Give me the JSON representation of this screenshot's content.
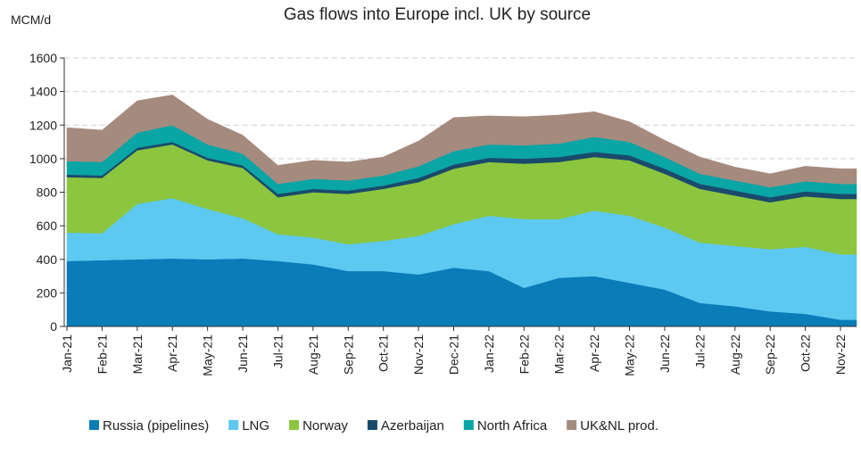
{
  "chart_data": {
    "type": "stacked_area",
    "title": "Gas flows into Europe incl. UK by source",
    "y_label": "MCM/d",
    "categories": [
      "Jan-21",
      "Feb-21",
      "Mar-21",
      "Apr-21",
      "May-21",
      "Jun-21",
      "Jul-21",
      "Aug-21",
      "Sep-21",
      "Oct-21",
      "Nov-21",
      "Dec-21",
      "Jan-22",
      "Feb-22",
      "Mar-22",
      "Apr-22",
      "May-22",
      "Jun-22",
      "Jul-22",
      "Aug-22",
      "Sep-22",
      "Oct-22",
      "Nov-22"
    ],
    "series": [
      {
        "name": "Russia (pipelines)",
        "color": "#0a7cb8",
        "values": [
          390,
          395,
          400,
          405,
          400,
          405,
          390,
          370,
          330,
          330,
          310,
          350,
          330,
          230,
          290,
          300,
          260,
          220,
          140,
          120,
          90,
          75,
          40
        ]
      },
      {
        "name": "LNG",
        "color": "#5dc8f0",
        "values": [
          170,
          160,
          330,
          360,
          300,
          240,
          160,
          160,
          160,
          180,
          230,
          260,
          330,
          410,
          350,
          390,
          400,
          370,
          360,
          360,
          370,
          400,
          390
        ]
      },
      {
        "name": "Norway",
        "color": "#8cc63f",
        "values": [
          330,
          330,
          320,
          320,
          290,
          300,
          220,
          270,
          300,
          310,
          320,
          330,
          320,
          330,
          340,
          320,
          330,
          320,
          320,
          300,
          280,
          300,
          330
        ]
      },
      {
        "name": "Azerbaijan",
        "color": "#1a4a6b",
        "values": [
          15,
          15,
          15,
          15,
          15,
          15,
          20,
          20,
          20,
          20,
          25,
          25,
          25,
          30,
          30,
          30,
          30,
          30,
          30,
          30,
          30,
          30,
          30
        ]
      },
      {
        "name": "North Africa",
        "color": "#0aa5a5",
        "values": [
          80,
          80,
          90,
          100,
          80,
          70,
          60,
          60,
          60,
          60,
          70,
          80,
          80,
          80,
          80,
          90,
          80,
          70,
          60,
          60,
          60,
          60,
          60
        ]
      },
      {
        "name": "UK&NL prod.",
        "color": "#a58a7e",
        "values": [
          200,
          190,
          190,
          180,
          150,
          110,
          110,
          110,
          110,
          110,
          150,
          200,
          170,
          170,
          170,
          150,
          120,
          100,
          100,
          80,
          80,
          90,
          90
        ]
      }
    ],
    "ylim": [
      0,
      1600
    ],
    "yticks": [
      0,
      200,
      400,
      600,
      800,
      1000,
      1200,
      1400,
      1600
    ],
    "grid": true
  }
}
